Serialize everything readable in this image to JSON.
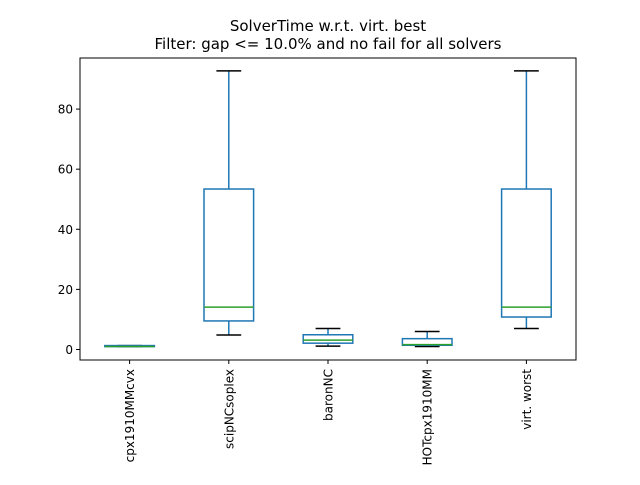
{
  "chart_data": {
    "type": "box",
    "title": "SolverTime w.r.t. virt. best",
    "subtitle": "Filter: gap <= 10.0% and no fail for all solvers",
    "xlabel": "",
    "ylabel": "",
    "ylim": [
      -3.5,
      97
    ],
    "yticks": [
      0,
      20,
      40,
      60,
      80
    ],
    "grid": false,
    "categories": [
      "cpx1910MMcvx",
      "scipNCsoplex",
      "baronNC",
      "HOTcpx1910MM",
      "virt. worst"
    ],
    "boxes": [
      {
        "name": "cpx1910MMcvx",
        "whisker_low": 1.0,
        "q1": 1.0,
        "median": 1.0,
        "q3": 1.3,
        "whisker_high": 1.3
      },
      {
        "name": "scipNCsoplex",
        "whisker_low": 4.8,
        "q1": 9.5,
        "median": 14.1,
        "q3": 53.4,
        "whisker_high": 92.7
      },
      {
        "name": "baronNC",
        "whisker_low": 1.1,
        "q1": 2.1,
        "median": 3.1,
        "q3": 4.9,
        "whisker_high": 7.0
      },
      {
        "name": "HOTcpx1910MM",
        "whisker_low": 1.0,
        "q1": 1.4,
        "median": 1.6,
        "q3": 3.6,
        "whisker_high": 6.0
      },
      {
        "name": "virt. worst",
        "whisker_low": 7.0,
        "q1": 10.8,
        "median": 14.1,
        "q3": 53.4,
        "whisker_high": 92.7
      }
    ],
    "colors": {
      "box": "#1f77b4",
      "median": "#2ca02c",
      "cap": "#000000",
      "axes": "#000000"
    }
  }
}
